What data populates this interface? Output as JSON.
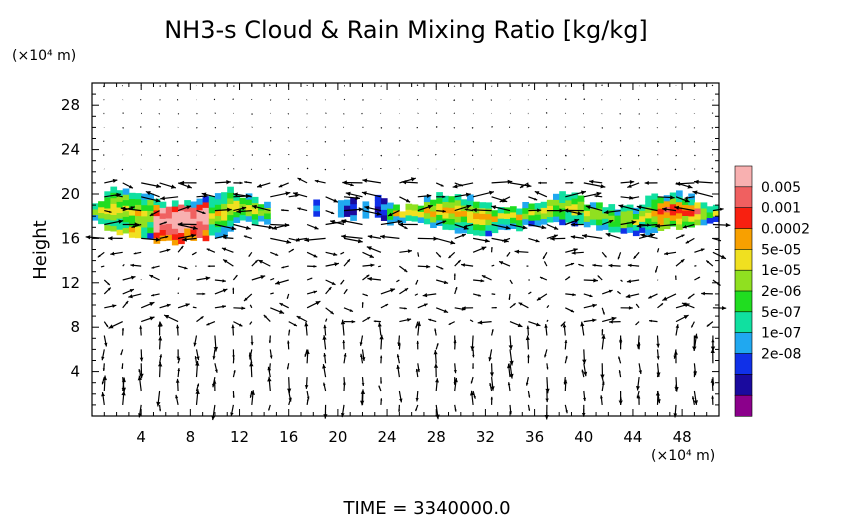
{
  "chart_data": {
    "type": "heatmap",
    "title": "NH3-s Cloud & Rain Mixing Ratio [kg/kg]",
    "ylabel": "Height",
    "xlabel": "",
    "x_unit_label": "(×10⁴ m)",
    "y_unit_label": "(×10⁴ m)",
    "xlim": [
      0,
      51
    ],
    "ylim": [
      0,
      30
    ],
    "x_ticks": [
      "4",
      "8",
      "12",
      "16",
      "20",
      "24",
      "28",
      "32",
      "36",
      "40",
      "44",
      "48"
    ],
    "y_ticks": [
      "4",
      "8",
      "12",
      "16",
      "20",
      "24",
      "28"
    ],
    "colorbar": {
      "labels": [
        "0.005",
        "0.001",
        "0.0002",
        "5e-05",
        "1e-05",
        "2e-06",
        "5e-07",
        "1e-07",
        "2e-08"
      ],
      "colors": [
        "#8b008b",
        "#1a0a9e",
        "#1030e8",
        "#20a8f0",
        "#10e0a0",
        "#20dd20",
        "#90e020",
        "#f0e020",
        "#f8a000",
        "#f82010",
        "#f06060",
        "#f8b0b0"
      ]
    },
    "time_label": "TIME = 3340000.0",
    "cloud_layer": {
      "base_height": 15.5,
      "top_height": 20.0,
      "thickest_region_x": [
        1,
        11
      ],
      "peak_region_x": [
        5,
        9
      ],
      "secondary_peak_x": [
        46,
        49
      ]
    }
  }
}
